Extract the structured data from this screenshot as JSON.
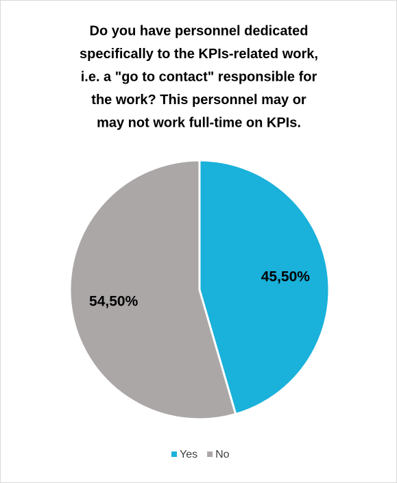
{
  "chart_data": {
    "type": "pie",
    "title": [
      "Do you have personnel dedicated",
      "specifically to the KPIs-related work,",
      "i.e. a \"go to contact\" responsible for",
      "the work? This personnel may or",
      "may not work full-time on KPIs."
    ],
    "categories": [
      "Yes",
      "No"
    ],
    "values": [
      45.5,
      54.5
    ],
    "value_labels": [
      "45,50%",
      "54,50%"
    ],
    "colors": [
      "#1ab1da",
      "#aba7a7"
    ],
    "legend": "bottom"
  }
}
